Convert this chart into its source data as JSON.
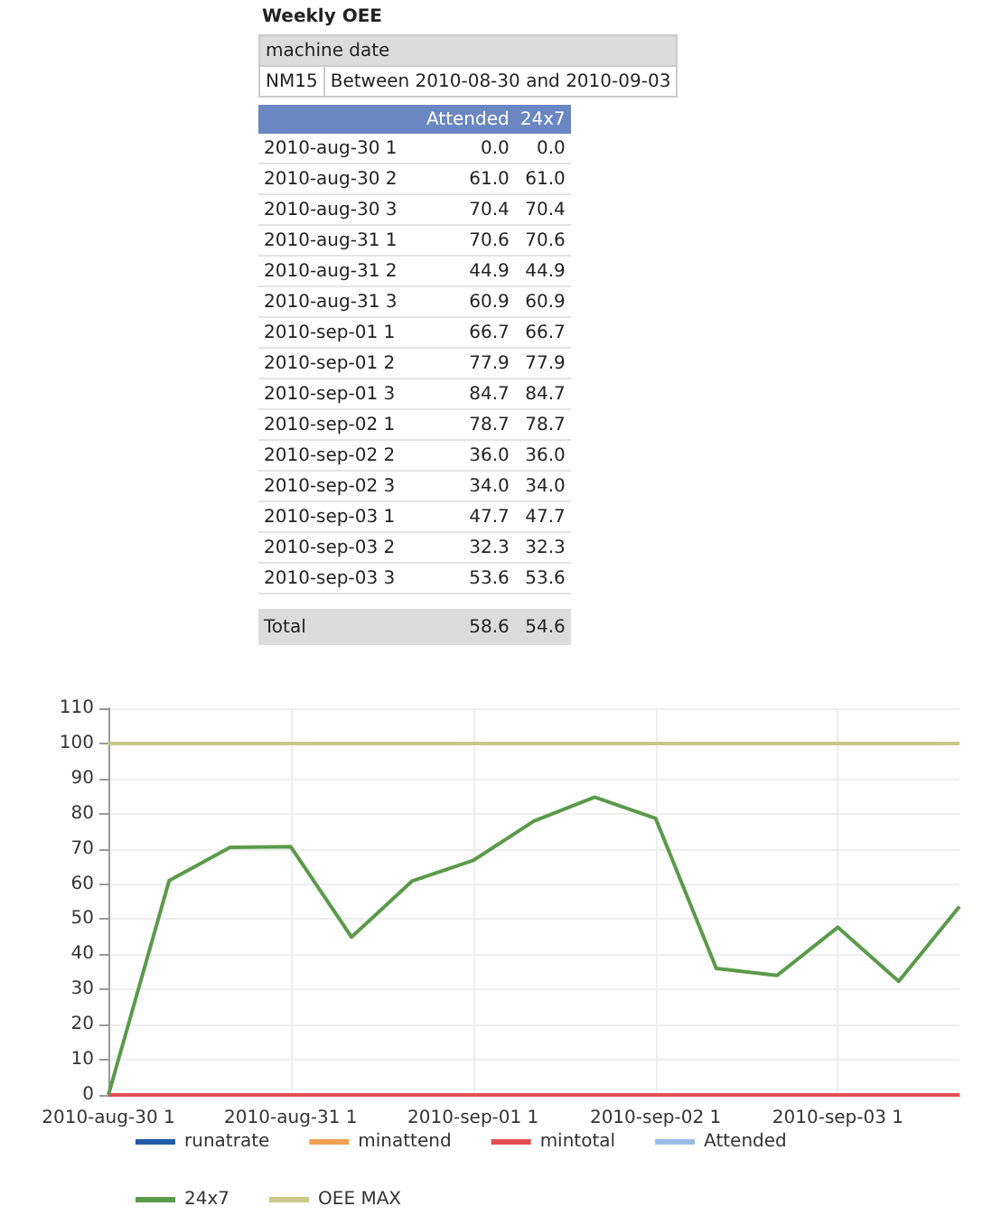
{
  "chart_data": [
    {
      "type": "other",
      "title": "Weekly OEE",
      "annotations": [
        "machine",
        "date",
        "NM15",
        "Between 2010-08-30 and 2010-09-03",
        "Attended",
        "24x7",
        "2010-aug-30 1",
        "0.0",
        "0.0",
        "2010-aug-30 2",
        "61.0",
        "61.0",
        "2010-aug-30 3",
        "70.4",
        "70.4",
        "2010-aug-31 1",
        "70.6",
        "70.6",
        "2010-aug-31 2",
        "44.9",
        "44.9",
        "2010-aug-31 3",
        "60.9",
        "60.9",
        "2010-sep-01 1",
        "66.7",
        "66.7",
        "2010-sep-01 2",
        "77.9",
        "77.9",
        "2010-sep-01 3",
        "84.7",
        "84.7",
        "2010-sep-02 1",
        "78.7",
        "78.7",
        "2010-sep-02 2",
        "36.0",
        "36.0",
        "2010-sep-02 3",
        "34.0",
        "34.0",
        "2010-sep-03 1",
        "47.7",
        "47.7",
        "2010-sep-03 2",
        "32.3",
        "32.3",
        "2010-sep-03 3",
        "53.6",
        "53.6",
        "Total",
        "58.6",
        "54.6"
      ]
    },
    {
      "type": "line",
      "categories": [
        "2010-aug-30 1",
        null,
        null,
        "2010-aug-31 1",
        null,
        null,
        "2010-sep-01 1",
        null,
        null,
        "2010-sep-02 1",
        null,
        null,
        "2010-sep-03 1",
        null,
        null
      ],
      "series": [
        {
          "name": "runatrate",
          "color": "#1f5aa6",
          "values": [
            null,
            null,
            null,
            null,
            null,
            null,
            null,
            null,
            null,
            null,
            null,
            null,
            null,
            null,
            null
          ]
        },
        {
          "name": "minattend",
          "color": "#f0a050",
          "values": [
            null,
            null,
            null,
            null,
            null,
            null,
            null,
            null,
            null,
            null,
            null,
            null,
            null,
            null,
            null
          ]
        },
        {
          "name": "mintotal",
          "color": "#e05050",
          "values": [
            0,
            0,
            0,
            0,
            0,
            0,
            0,
            0,
            0,
            0,
            0,
            0,
            0,
            0,
            0
          ]
        },
        {
          "name": "Attended",
          "color": "#99bbe8",
          "values": [
            null,
            null,
            null,
            null,
            null,
            null,
            null,
            null,
            null,
            null,
            null,
            null,
            null,
            null,
            null
          ]
        },
        {
          "name": "24x7",
          "color": "#5a9a4a",
          "values": [
            0.0,
            61.0,
            70.4,
            70.6,
            44.9,
            60.9,
            66.7,
            77.9,
            84.7,
            78.7,
            36.0,
            34.0,
            47.7,
            32.3,
            53.6
          ]
        },
        {
          "name": "OEE MAX",
          "color": "#c8c88a",
          "values": [
            100,
            100,
            100,
            100,
            100,
            100,
            100,
            100,
            100,
            100,
            100,
            100,
            100,
            100,
            100
          ]
        }
      ],
      "ylim": [
        0,
        110
      ],
      "yticks": [
        0,
        10,
        20,
        30,
        40,
        50,
        60,
        70,
        80,
        90,
        100,
        110
      ],
      "grid": true,
      "legend": "bottom",
      "marker": "none",
      "line_style": "solid"
    }
  ]
}
